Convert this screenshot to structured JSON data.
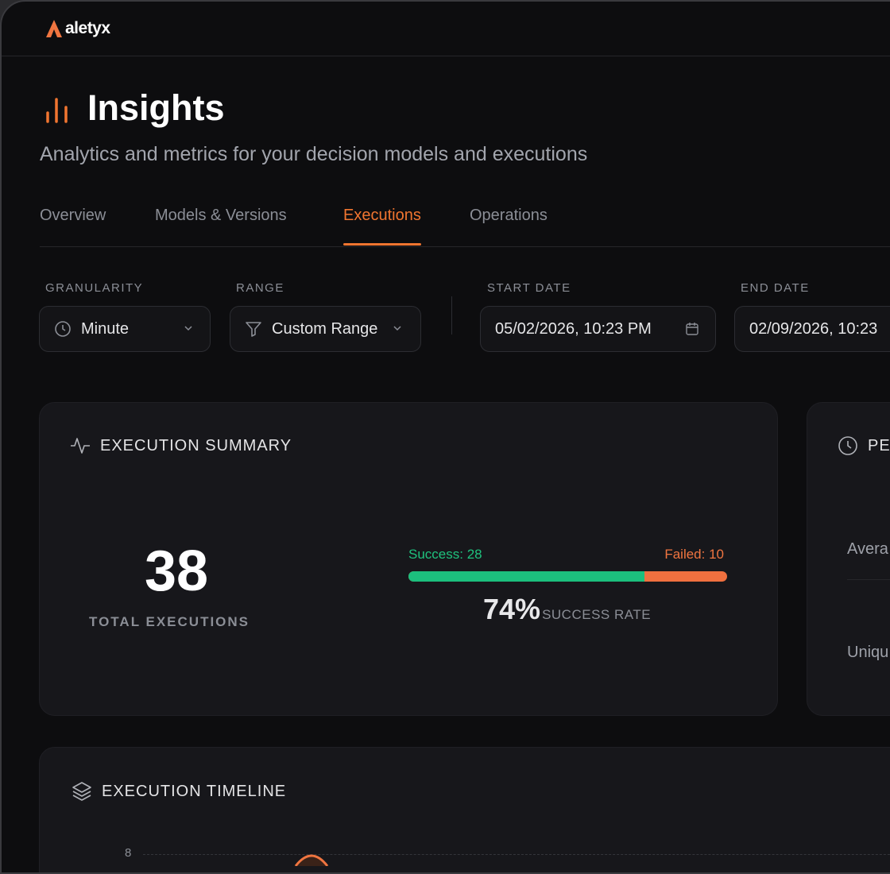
{
  "brand": {
    "name": "aletyx",
    "accent": "#f07530"
  },
  "page": {
    "title": "Insights",
    "subtitle": "Analytics and metrics for your decision models and executions"
  },
  "tabs": [
    {
      "label": "Overview"
    },
    {
      "label": "Models & Versions"
    },
    {
      "label": "Executions",
      "active": true
    },
    {
      "label": "Operations"
    }
  ],
  "filters": {
    "granularity": {
      "label": "GRANULARITY",
      "value": "Minute",
      "icon": "clock-icon"
    },
    "range": {
      "label": "RANGE",
      "value": "Custom Range",
      "icon": "filter-icon"
    },
    "start_date": {
      "label": "START DATE",
      "value": "05/02/2026, 10:23 PM",
      "icon": "calendar-icon"
    },
    "end_date": {
      "label": "END DATE",
      "value": "02/09/2026, 10:23"
    }
  },
  "summary": {
    "title": "EXECUTION SUMMARY",
    "total": "38",
    "total_label": "TOTAL EXECUTIONS",
    "success_label": "Success: 28",
    "failed_label": "Failed: 10",
    "success_fraction": 0.74,
    "rate": "74%",
    "rate_label": "SUCCESS RATE",
    "success_color": "#1cbf7d",
    "failed_color": "#f0703f"
  },
  "performance": {
    "title": "PE",
    "rows": [
      {
        "label": "Avera"
      },
      {
        "label": "Uniqu"
      }
    ]
  },
  "timeline": {
    "title": "EXECUTION TIMELINE",
    "y_tick": "8"
  }
}
